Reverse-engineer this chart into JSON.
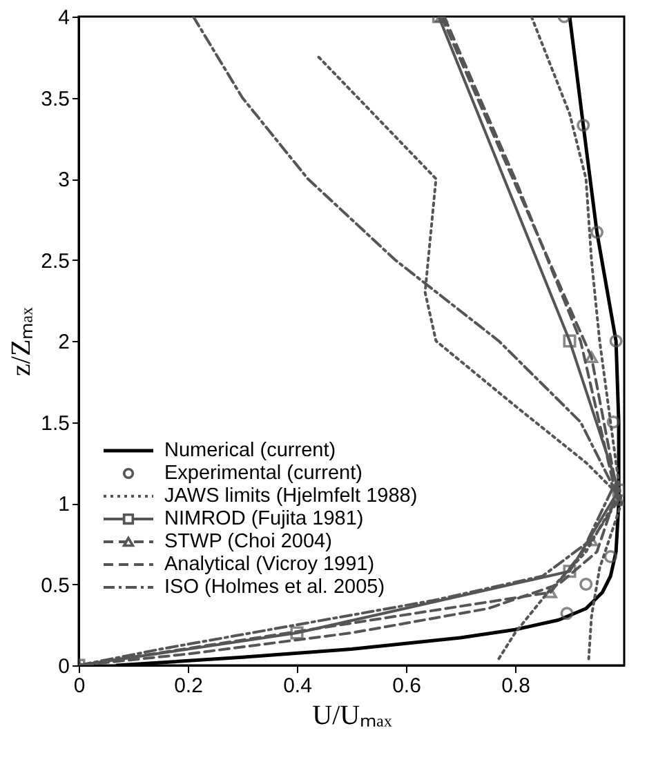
{
  "chart_data": {
    "type": "line",
    "xlabel": "U/Uₘₐₓ",
    "ylabel": "z/Zₘₐₓ",
    "xlim": [
      0,
      1
    ],
    "ylim": [
      0,
      4
    ],
    "xticks": [
      0,
      0.2,
      0.4,
      0.6,
      0.8
    ],
    "yticks": [
      0,
      0.5,
      1,
      1.5,
      2,
      2.5,
      3,
      3.5,
      4
    ],
    "grid": false,
    "legend": "bottom left",
    "series": [
      {
        "name": "Numerical (current)",
        "type": "line",
        "color": "#000000",
        "line_style": "solid",
        "marker": "none",
        "x": [
          0.07,
          0.3,
          0.5,
          0.7,
          0.8,
          0.88,
          0.93,
          0.96,
          0.975,
          0.985,
          0.99,
          0.99,
          0.985,
          0.95,
          0.925,
          0.9
        ],
        "values": [
          0,
          0.05,
          0.1,
          0.17,
          0.22,
          0.28,
          0.35,
          0.45,
          0.55,
          0.7,
          1.0,
          1.5,
          2,
          2.67,
          3.33,
          4
        ]
      },
      {
        "name": "Experimental (current)",
        "type": "scatter",
        "color": "#555555",
        "marker": "circle",
        "x": [
          0.89,
          0.925,
          0.95,
          0.985,
          0.98,
          0.975,
          0.93,
          0.895
        ],
        "values": [
          4,
          3.33,
          2.67,
          2,
          1.5,
          0.67,
          0.5,
          0.32
        ]
      },
      {
        "name": "JAWS limits (Hjelmfelt 1988)",
        "type": "line",
        "color": "#555555",
        "line_style": "dotted",
        "marker": "none",
        "x": [
          0.44,
          0.655,
          0.635,
          0.655,
          0.8,
          0.93,
          0.99,
          0.93,
          0.86,
          0.8,
          0.77,
          null,
          0.83,
          0.9,
          0.93,
          0.94,
          0.955,
          0.975,
          0.995,
          0.975,
          0.955,
          0.94,
          0.935
        ],
        "values": [
          3.75,
          3.0,
          2.3,
          2.0,
          1.6,
          1.25,
          1.05,
          0.7,
          0.45,
          0.2,
          0.04,
          null,
          4,
          3.4,
          3.0,
          2.5,
          2.0,
          1.5,
          1.0,
          0.8,
          0.6,
          0.3,
          0.04
        ]
      },
      {
        "name": "NIMROD (Fujita 1981)",
        "type": "line",
        "color": "#555555",
        "line_style": "solid",
        "marker": "square",
        "x": [
          0.66,
          0.9,
          0.99,
          0.9,
          0.4,
          0
        ],
        "values": [
          4,
          2,
          1.08,
          0.58,
          0.2,
          0
        ]
      },
      {
        "name": "STWP (Choi 2004)",
        "type": "line",
        "color": "#555555",
        "line_style": "dashed",
        "marker": "triangle",
        "x": [
          0.665,
          0.94,
          0.99,
          0.94,
          0.865,
          0
        ],
        "values": [
          4,
          1.9,
          1.02,
          0.77,
          0.45,
          0
        ]
      },
      {
        "name": "Analytical (Vicroy 1991)",
        "type": "line",
        "color": "#555555",
        "line_style": "dashed",
        "marker": "none",
        "x": [
          0.67,
          0.8,
          0.92,
          0.985,
          0.95,
          0.88,
          0.75,
          0.5,
          0.2,
          0
        ],
        "values": [
          4,
          3,
          2,
          1.05,
          0.7,
          0.5,
          0.35,
          0.2,
          0.07,
          0
        ]
      },
      {
        "name": "ISO (Holmes et al. 2005)",
        "type": "line",
        "color": "#555555",
        "line_style": "dashdot",
        "marker": "none",
        "x": [
          0.21,
          0.3,
          0.42,
          0.58,
          0.77,
          0.92,
          0.98,
          0.93,
          0.85,
          0.65,
          0.4,
          0.15,
          0
        ],
        "values": [
          4,
          3.5,
          3,
          2.5,
          2,
          1.5,
          1.1,
          0.75,
          0.55,
          0.4,
          0.25,
          0.1,
          0
        ]
      }
    ]
  }
}
